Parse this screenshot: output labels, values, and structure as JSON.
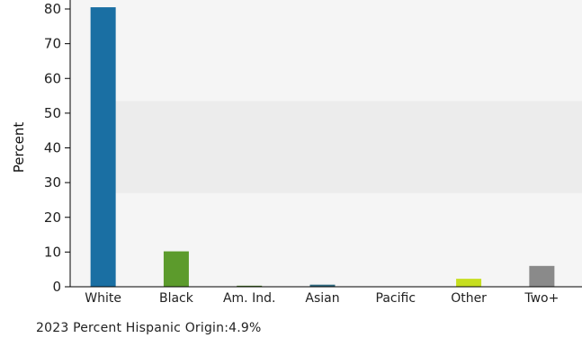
{
  "chart_data": {
    "type": "bar",
    "categories": [
      "White",
      "Black",
      "Am. Ind.",
      "Asian",
      "Pacific",
      "Other",
      "Two+"
    ],
    "values": [
      80.5,
      10.2,
      0.3,
      0.6,
      0.1,
      2.3,
      6.0
    ],
    "colors": [
      "#1a6fa3",
      "#5c9b2c",
      "#4d7d2a",
      "#2f6a80",
      "#9aa5b0",
      "#c6de1f",
      "#8a8a8a"
    ],
    "ylabel": "Percent",
    "ylim": [
      0,
      80
    ],
    "yticks": [
      0,
      10,
      20,
      30,
      40,
      50,
      60,
      70,
      80
    ],
    "grid": false,
    "background_bands": [
      "#f5f5f5",
      "#ececec"
    ]
  },
  "footnote": "2023 Percent Hispanic Origin:4.9%"
}
